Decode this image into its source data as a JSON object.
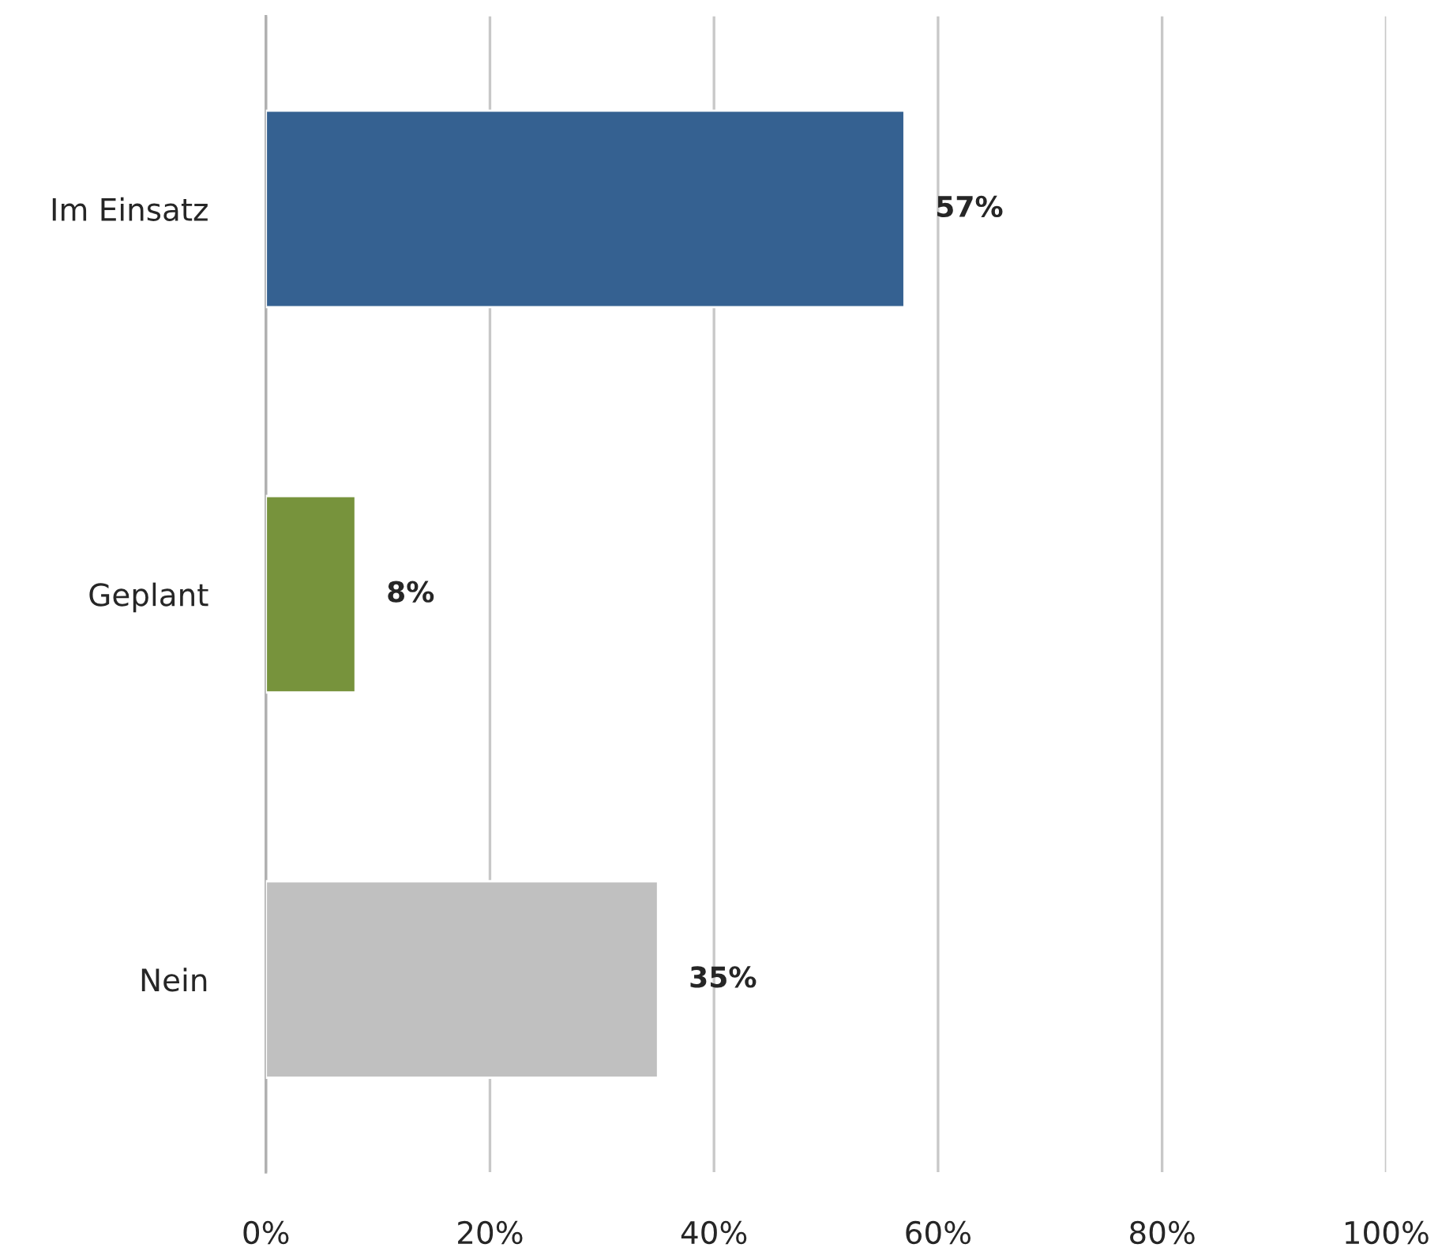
{
  "chart_data": {
    "type": "bar",
    "orientation": "horizontal",
    "categories": [
      "Im Einsatz",
      "Geplant",
      "Nein"
    ],
    "values": [
      57,
      8,
      35
    ],
    "colors": [
      "#356191",
      "#77933c",
      "#c0c0c0"
    ],
    "value_labels": [
      "57%",
      "8%",
      "35%"
    ],
    "xlim": [
      0,
      100
    ],
    "xticks": [
      {
        "value": 0,
        "label": "0%"
      },
      {
        "value": 20,
        "label": "20%"
      },
      {
        "value": 40,
        "label": "40%"
      },
      {
        "value": 60,
        "label": "60%"
      },
      {
        "value": 80,
        "label": "80%"
      },
      {
        "value": 100,
        "label": "100%"
      }
    ],
    "grid": "x",
    "legend": false
  }
}
